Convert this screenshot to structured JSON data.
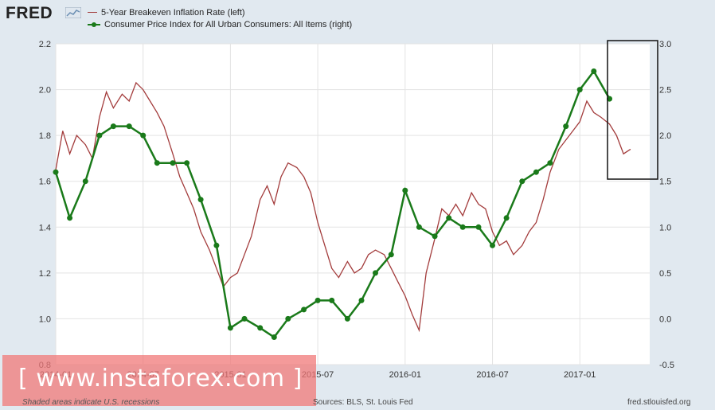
{
  "brand": {
    "logo": "FRED"
  },
  "chart_data": {
    "type": "line",
    "x_ticks": [
      "2014-01",
      "2014-07",
      "2015-01",
      "2015-07",
      "2016-01",
      "2016-07",
      "2017-01"
    ],
    "x_range": [
      "2014-01",
      "2017-05"
    ],
    "y_left": {
      "ticks": [
        "0.8",
        "1.0",
        "1.2",
        "1.4",
        "1.6",
        "1.8",
        "2.0",
        "2.2"
      ],
      "range": [
        0.8,
        2.2
      ]
    },
    "y_right": {
      "ticks": [
        "-0.5",
        "0.0",
        "0.5",
        "1.0",
        "1.5",
        "2.0",
        "2.5",
        "3.0"
      ],
      "range": [
        -0.5,
        3.0
      ]
    },
    "series": [
      {
        "name": "5-Year Breakeven Inflation Rate (left)",
        "axis": "left",
        "color": "#a33c3c",
        "points": [
          [
            2014.0,
            1.65
          ],
          [
            2014.04,
            1.82
          ],
          [
            2014.08,
            1.72
          ],
          [
            2014.12,
            1.8
          ],
          [
            2014.17,
            1.76
          ],
          [
            2014.21,
            1.7
          ],
          [
            2014.25,
            1.88
          ],
          [
            2014.29,
            1.99
          ],
          [
            2014.33,
            1.92
          ],
          [
            2014.38,
            1.98
          ],
          [
            2014.42,
            1.95
          ],
          [
            2014.46,
            2.03
          ],
          [
            2014.5,
            2.0
          ],
          [
            2014.54,
            1.95
          ],
          [
            2014.58,
            1.9
          ],
          [
            2014.62,
            1.84
          ],
          [
            2014.67,
            1.72
          ],
          [
            2014.71,
            1.62
          ],
          [
            2014.75,
            1.55
          ],
          [
            2014.79,
            1.48
          ],
          [
            2014.83,
            1.38
          ],
          [
            2014.88,
            1.3
          ],
          [
            2014.92,
            1.22
          ],
          [
            2014.96,
            1.14
          ],
          [
            2015.0,
            1.18
          ],
          [
            2015.04,
            1.2
          ],
          [
            2015.08,
            1.28
          ],
          [
            2015.12,
            1.36
          ],
          [
            2015.17,
            1.52
          ],
          [
            2015.21,
            1.58
          ],
          [
            2015.25,
            1.5
          ],
          [
            2015.29,
            1.62
          ],
          [
            2015.33,
            1.68
          ],
          [
            2015.38,
            1.66
          ],
          [
            2015.42,
            1.62
          ],
          [
            2015.46,
            1.55
          ],
          [
            2015.5,
            1.42
          ],
          [
            2015.54,
            1.32
          ],
          [
            2015.58,
            1.22
          ],
          [
            2015.62,
            1.18
          ],
          [
            2015.67,
            1.25
          ],
          [
            2015.71,
            1.2
          ],
          [
            2015.75,
            1.22
          ],
          [
            2015.79,
            1.28
          ],
          [
            2015.83,
            1.3
          ],
          [
            2015.88,
            1.28
          ],
          [
            2015.92,
            1.22
          ],
          [
            2015.96,
            1.16
          ],
          [
            2016.0,
            1.1
          ],
          [
            2016.04,
            1.02
          ],
          [
            2016.08,
            0.95
          ],
          [
            2016.12,
            1.2
          ],
          [
            2016.17,
            1.35
          ],
          [
            2016.21,
            1.48
          ],
          [
            2016.25,
            1.45
          ],
          [
            2016.29,
            1.5
          ],
          [
            2016.33,
            1.45
          ],
          [
            2016.38,
            1.55
          ],
          [
            2016.42,
            1.5
          ],
          [
            2016.46,
            1.48
          ],
          [
            2016.5,
            1.38
          ],
          [
            2016.54,
            1.32
          ],
          [
            2016.58,
            1.34
          ],
          [
            2016.62,
            1.28
          ],
          [
            2016.67,
            1.32
          ],
          [
            2016.71,
            1.38
          ],
          [
            2016.75,
            1.42
          ],
          [
            2016.79,
            1.52
          ],
          [
            2016.83,
            1.64
          ],
          [
            2016.88,
            1.74
          ],
          [
            2016.92,
            1.78
          ],
          [
            2016.96,
            1.82
          ],
          [
            2017.0,
            1.86
          ],
          [
            2017.04,
            1.95
          ],
          [
            2017.08,
            1.9
          ],
          [
            2017.12,
            1.88
          ],
          [
            2017.17,
            1.85
          ],
          [
            2017.21,
            1.8
          ],
          [
            2017.25,
            1.72
          ],
          [
            2017.29,
            1.74
          ]
        ]
      },
      {
        "name": "Consumer Price Index for All Urban Consumers: All Items (right)",
        "axis": "right",
        "color": "#1a7a1a",
        "points": [
          [
            2014.0,
            1.6
          ],
          [
            2014.08,
            1.1
          ],
          [
            2014.17,
            1.5
          ],
          [
            2014.25,
            2.0
          ],
          [
            2014.33,
            2.1
          ],
          [
            2014.42,
            2.1
          ],
          [
            2014.5,
            2.0
          ],
          [
            2014.58,
            1.7
          ],
          [
            2014.67,
            1.7
          ],
          [
            2014.75,
            1.7
          ],
          [
            2014.83,
            1.3
          ],
          [
            2014.92,
            0.8
          ],
          [
            2015.0,
            -0.1
          ],
          [
            2015.08,
            0.0
          ],
          [
            2015.17,
            -0.1
          ],
          [
            2015.25,
            -0.2
          ],
          [
            2015.33,
            0.0
          ],
          [
            2015.42,
            0.1
          ],
          [
            2015.5,
            0.2
          ],
          [
            2015.58,
            0.2
          ],
          [
            2015.67,
            0.0
          ],
          [
            2015.75,
            0.2
          ],
          [
            2015.83,
            0.5
          ],
          [
            2015.92,
            0.7
          ],
          [
            2016.0,
            1.4
          ],
          [
            2016.08,
            1.0
          ],
          [
            2016.17,
            0.9
          ],
          [
            2016.25,
            1.1
          ],
          [
            2016.33,
            1.0
          ],
          [
            2016.42,
            1.0
          ],
          [
            2016.5,
            0.8
          ],
          [
            2016.58,
            1.1
          ],
          [
            2016.67,
            1.5
          ],
          [
            2016.75,
            1.6
          ],
          [
            2016.83,
            1.7
          ],
          [
            2016.92,
            2.1
          ],
          [
            2017.0,
            2.5
          ],
          [
            2017.08,
            2.7
          ],
          [
            2017.17,
            2.4
          ]
        ]
      }
    ],
    "annotation": "highlight box around latest data"
  },
  "legend": {
    "items": [
      {
        "label": "5-Year Breakeven Inflation Rate (left)"
      },
      {
        "label": "Consumer Price Index for All Urban Consumers: All Items (right)"
      }
    ]
  },
  "footer": {
    "note": "Shaded areas indicate U.S. recessions",
    "sources": "Sources: BLS, St. Louis Fed",
    "site": "fred.stlouisfed.org"
  },
  "watermark": {
    "text": "[ www.instaforex.com ]"
  }
}
